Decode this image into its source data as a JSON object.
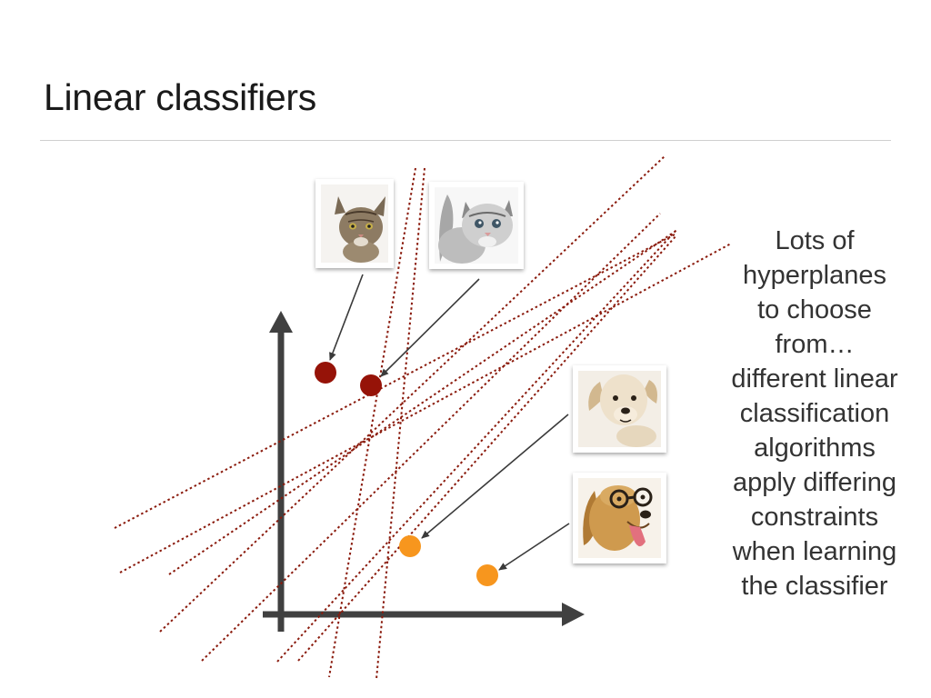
{
  "slide": {
    "title": "Linear classifiers",
    "side_text_lines": [
      "Lots of",
      "hyperplanes",
      "to choose",
      "from…",
      "different linear",
      "classification",
      "algorithms",
      "apply differing",
      "constraints",
      "when learning",
      "the classifier"
    ]
  },
  "colors": {
    "axis": "#404040",
    "hyperplane": "#8a1a0c",
    "cat_point": "#961308",
    "dog_point": "#f7961e",
    "arrow": "#3a3a3a"
  },
  "images": [
    {
      "name": "tabby-cat-photo",
      "kind": "cat"
    },
    {
      "name": "kitten-photo",
      "kind": "cat"
    },
    {
      "name": "puppy-photo",
      "kind": "dog"
    },
    {
      "name": "dog-with-glasses-photo",
      "kind": "dog"
    }
  ]
}
